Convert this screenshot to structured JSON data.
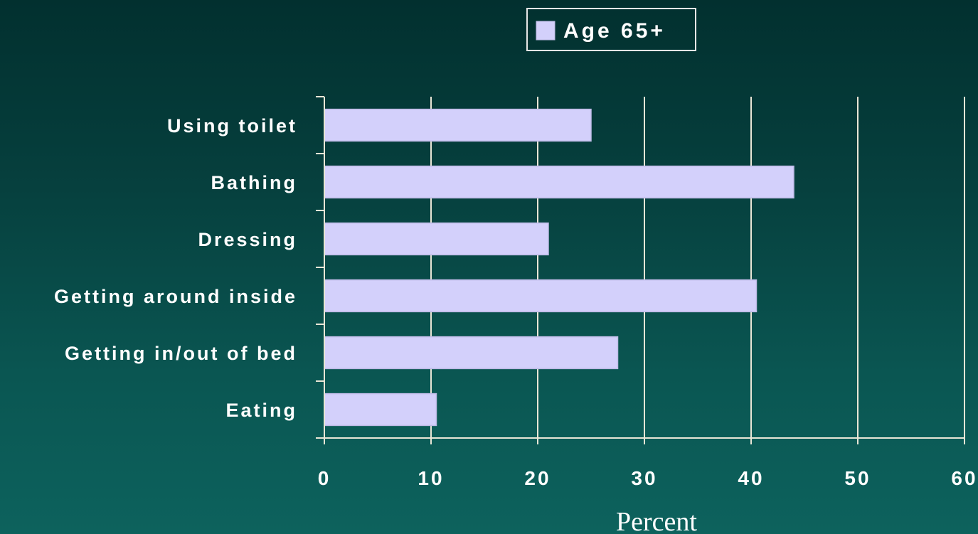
{
  "chart_data": {
    "type": "bar",
    "orientation": "horizontal",
    "categories": [
      "Using toilet",
      "Bathing",
      "Dressing",
      "Getting around inside",
      "Getting in/out of bed",
      "Eating"
    ],
    "series": [
      {
        "name": "Age 65+",
        "values": [
          25,
          44,
          21,
          40.5,
          27.5,
          10.5
        ]
      }
    ],
    "xlabel": "Percent",
    "xlim": [
      0,
      60
    ],
    "xticks": [
      0,
      10,
      20,
      30,
      40,
      50,
      60
    ],
    "grid": "vertical",
    "legend_position": "top-center",
    "colors": {
      "bar_fill": "#d3d0fb",
      "bar_edge": "#bfbbe6",
      "gridline": "#e9e6d6",
      "text": "#ffffff",
      "background_top": "#02302f",
      "background_bottom": "#0d625d"
    }
  }
}
